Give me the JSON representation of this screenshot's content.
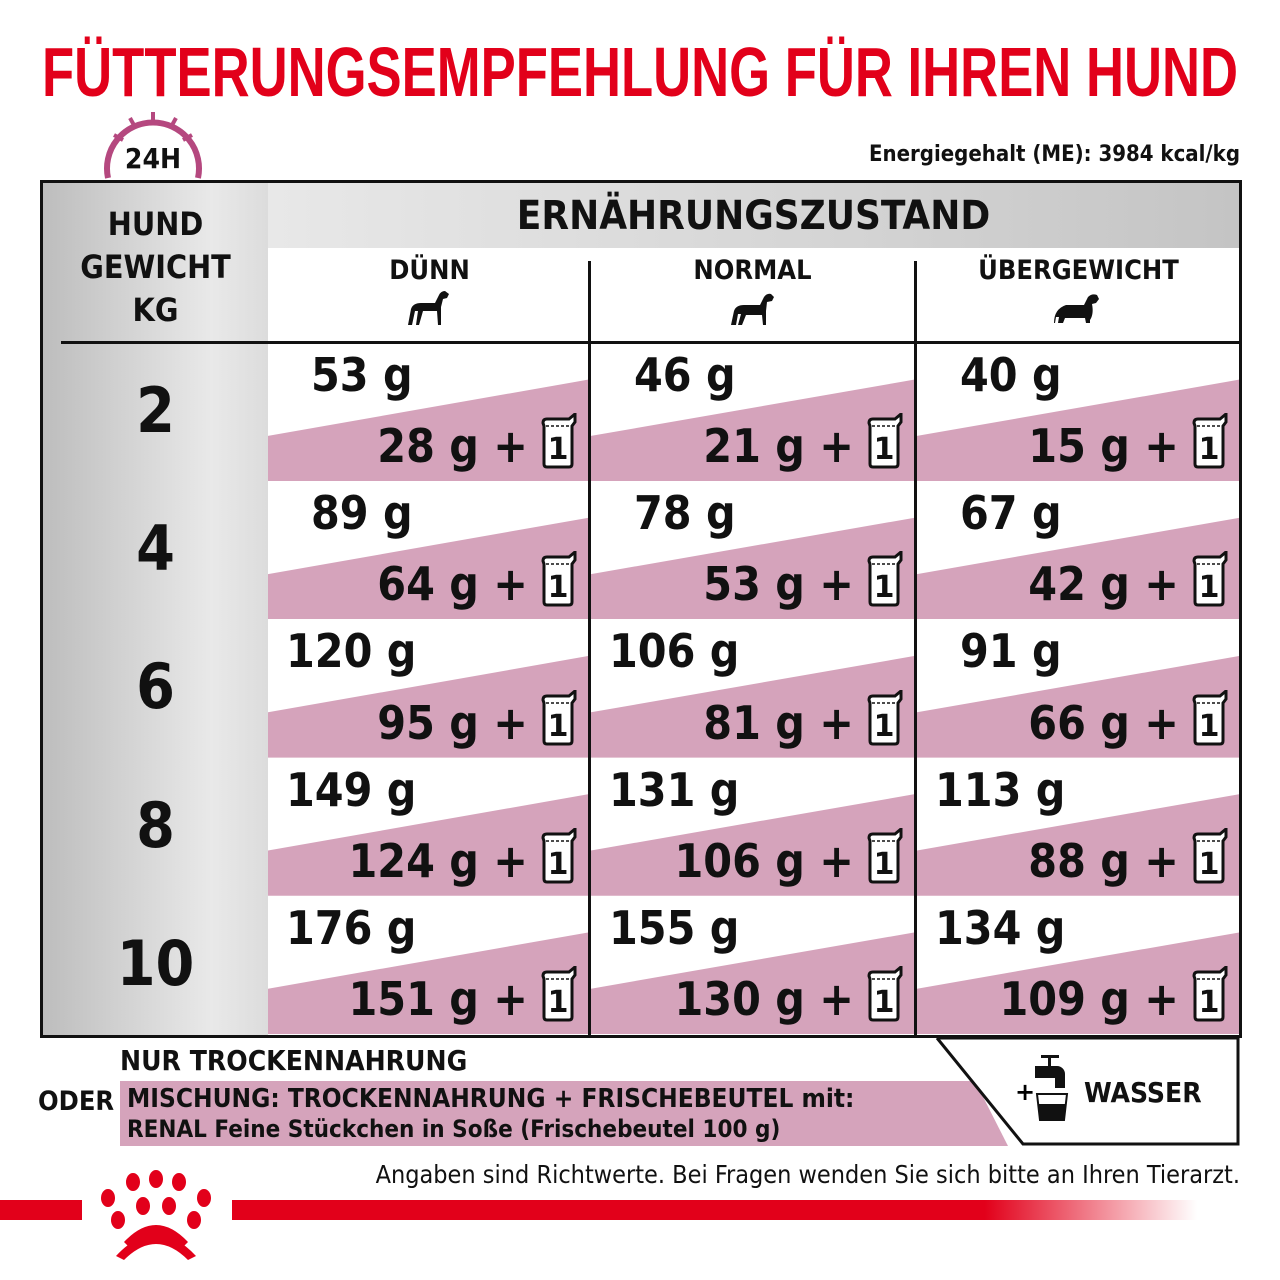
{
  "title": "FÜTTERUNGSEMPFEHLUNG FÜR IHREN HUND",
  "energy": "Energiegehalt (ME): 3984 kcal/kg",
  "clock_label": "24H",
  "colors": {
    "brand_red": "#e2001a",
    "pink": "#d5a3bb",
    "clock": "#b5487f"
  },
  "table": {
    "weight_header": [
      "HUND",
      "GEWICHT",
      "KG"
    ],
    "condition_header": "ERNÄHRUNGSZUSTAND",
    "columns": [
      {
        "label": "DÜNN",
        "icon": "thin-dog-icon"
      },
      {
        "label": "NORMAL",
        "icon": "normal-dog-icon"
      },
      {
        "label": "ÜBERGEWICHT",
        "icon": "overweight-dog-icon"
      }
    ],
    "pouch_count": "1",
    "rows": [
      {
        "weight": "2",
        "cells": [
          {
            "dry": "53 g",
            "mix": "28 g +"
          },
          {
            "dry": "46 g",
            "mix": "21 g +"
          },
          {
            "dry": "40 g",
            "mix": "15 g +"
          }
        ]
      },
      {
        "weight": "4",
        "cells": [
          {
            "dry": "89 g",
            "mix": "64 g +"
          },
          {
            "dry": "78 g",
            "mix": "53 g +"
          },
          {
            "dry": "67 g",
            "mix": "42 g +"
          }
        ]
      },
      {
        "weight": "6",
        "cells": [
          {
            "dry": "120 g",
            "mix": "95 g +"
          },
          {
            "dry": "106 g",
            "mix": "81 g +"
          },
          {
            "dry": "91 g",
            "mix": "66 g +"
          }
        ]
      },
      {
        "weight": "8",
        "cells": [
          {
            "dry": "149 g",
            "mix": "124 g +"
          },
          {
            "dry": "131 g",
            "mix": "106 g +"
          },
          {
            "dry": "113 g",
            "mix": "88 g +"
          }
        ]
      },
      {
        "weight": "10",
        "cells": [
          {
            "dry": "176 g",
            "mix": "151 g +"
          },
          {
            "dry": "155 g",
            "mix": "130 g +"
          },
          {
            "dry": "134 g",
            "mix": "109 g +"
          }
        ]
      }
    ]
  },
  "legend": {
    "dry_only": "NUR TROCKENNAHRUNG",
    "or": "ODER",
    "mix_line1": "MISCHUNG: TROCKENNAHRUNG + FRISCHEBEUTEL mit:",
    "mix_line2": "RENAL Feine Stückchen in Soße (Frischebeutel 100 g)",
    "water_plus": "+",
    "water": "WASSER"
  },
  "note": "Angaben sind Richtwerte. Bei Fragen wenden Sie sich bitte an Ihren Tierarzt."
}
